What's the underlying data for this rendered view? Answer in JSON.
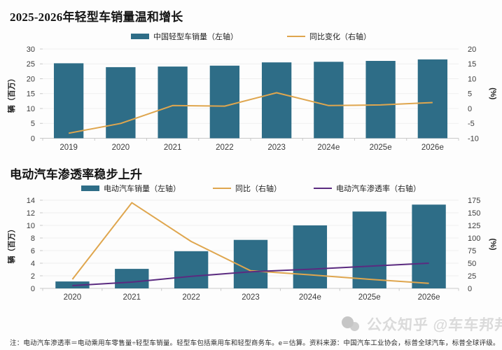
{
  "chart_data": [
    {
      "type": "bar+line",
      "title": "2025-2026年轻型车销量温和增长",
      "title_prefix": "2025-2026",
      "title_main": "年轻型车销量温和增长",
      "categories": [
        "2019",
        "2020",
        "2021",
        "2022",
        "2023",
        "2024e",
        "2025e",
        "2026e"
      ],
      "series": [
        {
          "name": "中国轻型车销量（左轴）",
          "type": "bar",
          "axis": "left",
          "color": "#2e6d87",
          "values": [
            25.2,
            23.9,
            24.1,
            24.4,
            25.5,
            25.7,
            26.0,
            26.5
          ]
        },
        {
          "name": "同比变化（右轴）",
          "type": "line",
          "axis": "right",
          "color": "#dfa64e",
          "values": [
            -8.3,
            -5.0,
            1.0,
            0.8,
            5.3,
            1.0,
            1.2,
            2.0
          ]
        }
      ],
      "left_axis": {
        "label": "辆（百万）",
        "ticks": [
          30,
          25,
          20,
          15,
          10,
          5,
          0
        ],
        "range": [
          0,
          30
        ]
      },
      "right_axis": {
        "label": "(%)",
        "ticks": [
          20,
          15,
          10,
          5,
          0,
          -5,
          -10
        ],
        "range": [
          -10,
          20
        ]
      },
      "grid": true,
      "legend_position": "top"
    },
    {
      "type": "bar+line",
      "title": "电动汽车渗透率稳步上升",
      "categories": [
        "2020",
        "2021",
        "2022",
        "2023",
        "2024e",
        "2025e",
        "2026e"
      ],
      "series": [
        {
          "name": "电动汽车销量（左轴）",
          "type": "bar",
          "axis": "left",
          "color": "#2e6d87",
          "values": [
            1.1,
            3.1,
            5.9,
            7.7,
            10.0,
            12.2,
            13.3
          ]
        },
        {
          "name": "同比（右轴）",
          "type": "line",
          "axis": "right",
          "color": "#dfa64e",
          "values": [
            18,
            170,
            93,
            35,
            27,
            18,
            10
          ]
        },
        {
          "name": "电动汽车渗透率（右轴）",
          "type": "line",
          "axis": "right",
          "color": "#5b2b80",
          "values": [
            5.5,
            12.5,
            24,
            33,
            38,
            44,
            50
          ]
        }
      ],
      "left_axis": {
        "label": "辆（百万）",
        "ticks": [
          14,
          12,
          10,
          8,
          6,
          4,
          2,
          0
        ],
        "range": [
          0,
          14
        ]
      },
      "right_axis": {
        "label": "(%)",
        "ticks": [
          175,
          150,
          125,
          100,
          75,
          50,
          25,
          0
        ],
        "range": [
          0,
          175
        ]
      },
      "grid": true,
      "legend_position": "top"
    }
  ],
  "note": "注：电动汽车渗透率＝电动乘用车零售量÷轻型车销量。轻型车包括乘用车和轻型商务车。e＝估算。资料来源：中国汽车工业协会，标普全球汽车，标普全球评级。",
  "watermark": {
    "icon": "circles-logo",
    "text": "公众知乎 @车车邦邦"
  },
  "colors": {
    "bar_teal": "#2e6d87",
    "line_orange": "#dfa64e",
    "line_purple": "#5b2b80",
    "grid": "#efefef",
    "axis": "#c9c9c9",
    "tick_text": "#3c3c3c"
  }
}
